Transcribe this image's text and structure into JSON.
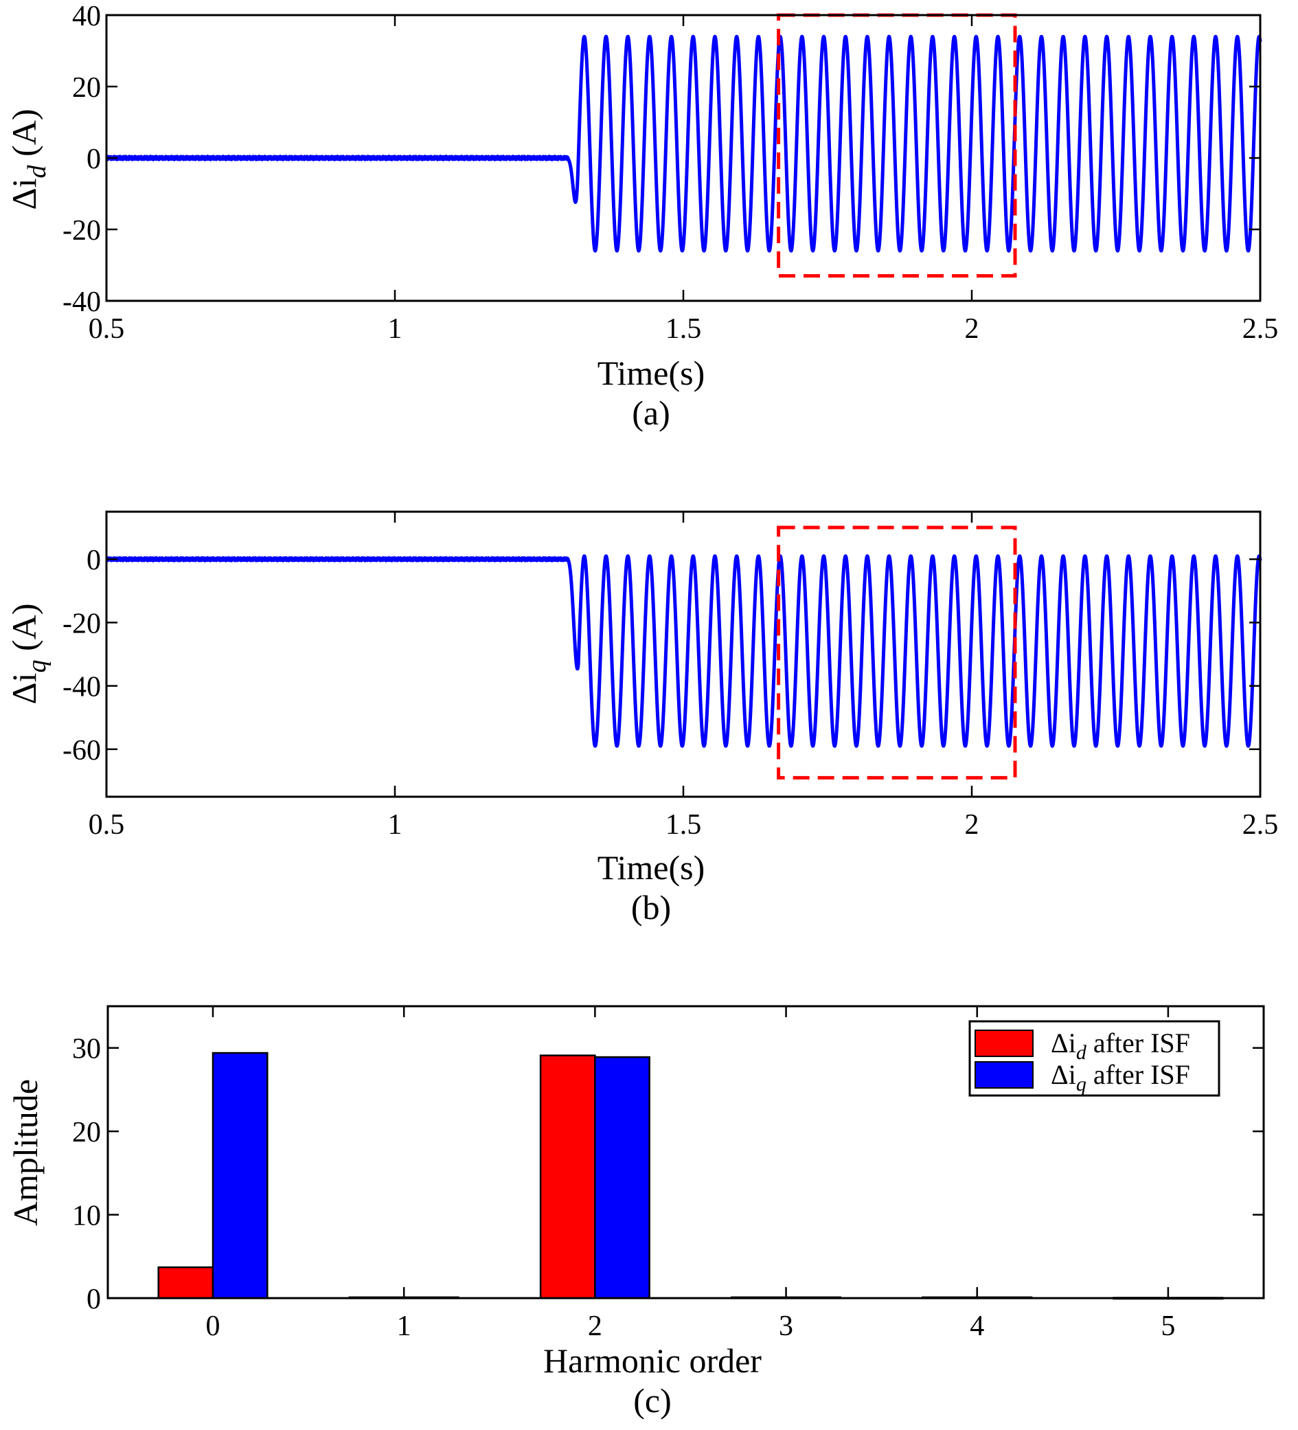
{
  "chart_data": [
    {
      "id": "a",
      "type": "line",
      "caption": "(a)",
      "xlabel": "Time(s)",
      "ylabel_base": "Δi",
      "ylabel_sub": "d",
      "ylabel_unit": " (A)",
      "xlim": [
        0.5,
        2.5
      ],
      "ylim": [
        -40,
        40
      ],
      "xticks": [
        0.5,
        1,
        1.5,
        2,
        2.5
      ],
      "xtick_labels": [
        "0.5",
        "1",
        "1.5",
        "2",
        "2.5"
      ],
      "yticks": [
        -40,
        -20,
        0,
        20,
        40
      ],
      "ytick_labels": [
        "-40",
        "-20",
        "0",
        "20",
        "40"
      ],
      "series": [
        {
          "name": "Δi_d",
          "color": "#0000ff",
          "steady_value": 0,
          "oscillation_start": 1.3,
          "oscillation_max": 34,
          "oscillation_min": -26,
          "frequency_hz": 26.5
        }
      ],
      "highlight_box": {
        "x": [
          1.665,
          2.075
        ],
        "y": [
          -33,
          40
        ],
        "color": "#ff0000"
      }
    },
    {
      "id": "b",
      "type": "line",
      "caption": "(b)",
      "xlabel": "Time(s)",
      "ylabel_base": "Δi",
      "ylabel_sub": "q",
      "ylabel_unit": " (A)",
      "xlim": [
        0.5,
        2.5
      ],
      "ylim": [
        -75,
        15
      ],
      "xticks": [
        0.5,
        1,
        1.5,
        2,
        2.5
      ],
      "xtick_labels": [
        "0.5",
        "1",
        "1.5",
        "2",
        "2.5"
      ],
      "yticks": [
        -60,
        -40,
        -20,
        0
      ],
      "ytick_labels": [
        "-60",
        "-40",
        "-20",
        "0"
      ],
      "series": [
        {
          "name": "Δi_q",
          "color": "#0000ff",
          "steady_value": 0,
          "oscillation_start": 1.3,
          "oscillation_max": 1,
          "oscillation_min": -59,
          "frequency_hz": 26.5
        }
      ],
      "highlight_box": {
        "x": [
          1.665,
          2.075
        ],
        "y": [
          -69,
          10
        ],
        "color": "#ff0000"
      }
    },
    {
      "id": "c",
      "type": "bar",
      "caption": "(c)",
      "xlabel": "Harmonic order",
      "ylabel": "Amplitude",
      "xlim": [
        -0.55,
        5.5
      ],
      "ylim": [
        0,
        35
      ],
      "categories": [
        "0",
        "1",
        "2",
        "3",
        "4",
        "5"
      ],
      "yticks": [
        0,
        10,
        20,
        30
      ],
      "ytick_labels": [
        "0",
        "10",
        "20",
        "30"
      ],
      "series": [
        {
          "name": "Δi_d after ISF",
          "legend_base": "Δi",
          "legend_sub": "d",
          "legend_rest": " after ISF",
          "color": "#ff0000",
          "values": [
            3.7,
            0.1,
            29.1,
            0.1,
            0.1,
            0.05
          ]
        },
        {
          "name": "Δi_q after ISF",
          "legend_base": "Δi",
          "legend_sub": "q",
          "legend_rest": " after ISF",
          "color": "#0000ff",
          "values": [
            29.4,
            0.1,
            28.9,
            0.1,
            0.1,
            0.05
          ]
        }
      ],
      "legend_position": "top-right"
    }
  ]
}
